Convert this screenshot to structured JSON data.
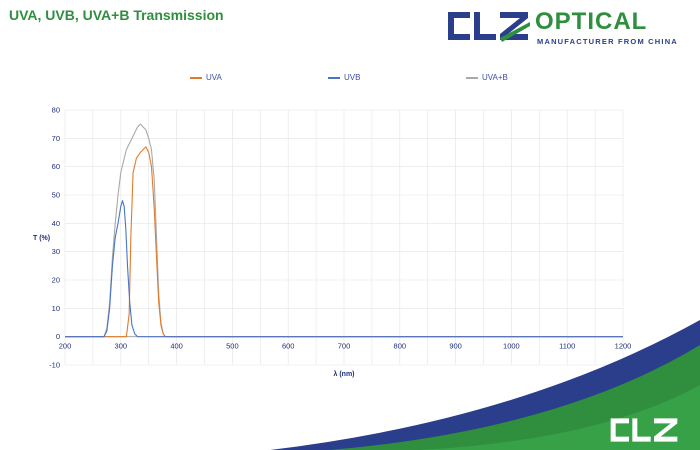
{
  "page": {
    "title": "UVA, UVB, UVA+B Transmission",
    "logo": {
      "brand_mark": "CLZ",
      "brand_name": "OPTICAL",
      "tagline": "MANUFACTURER FROM CHINA",
      "footer_mark": "CLZ"
    },
    "colors": {
      "title_green": "#2f8f3e",
      "brand_blue": "#2b3e8c",
      "uva": "#e07b2e",
      "uvb": "#4a74c9",
      "uvab": "#a9a9a9"
    }
  },
  "chart_data": {
    "type": "line",
    "title": "",
    "xlabel": "λ (nm)",
    "ylabel": "T (%)",
    "xlim": [
      200,
      1200
    ],
    "ylim": [
      -10,
      80
    ],
    "xticks": [
      200,
      300,
      400,
      500,
      600,
      700,
      800,
      900,
      1000,
      1100,
      1200
    ],
    "yticks": [
      -10,
      0,
      10,
      20,
      30,
      40,
      50,
      60,
      70,
      80
    ],
    "grid": true,
    "legend_position": "top",
    "series": [
      {
        "name": "UVA",
        "color": "#e07b2e",
        "x": [
          200,
          300,
          310,
          315,
          318,
          322,
          328,
          335,
          340,
          345,
          350,
          355,
          360,
          364,
          368,
          372,
          376,
          380,
          385,
          400,
          500,
          600,
          700,
          800,
          900,
          1000,
          1100,
          1200
        ],
        "y": [
          0,
          0,
          0,
          8,
          35,
          58,
          63,
          65,
          66,
          67,
          65,
          60,
          45,
          28,
          12,
          4,
          1,
          0,
          0,
          0,
          0,
          0,
          0,
          0,
          0,
          0,
          0,
          0
        ]
      },
      {
        "name": "UVB",
        "color": "#4a74c9",
        "x": [
          200,
          270,
          275,
          280,
          285,
          290,
          295,
          300,
          303,
          306,
          309,
          312,
          316,
          320,
          325,
          330,
          400,
          500,
          600,
          700,
          800,
          900,
          1000,
          1100,
          1200
        ],
        "y": [
          0,
          0,
          2,
          10,
          25,
          35,
          40,
          46,
          48,
          46,
          38,
          25,
          12,
          4,
          1,
          0,
          0,
          0,
          0,
          0,
          0,
          0,
          0,
          0,
          0
        ]
      },
      {
        "name": "UVA+B",
        "color": "#a9a9a9",
        "x": [
          200,
          270,
          275,
          280,
          285,
          290,
          295,
          300,
          305,
          310,
          315,
          320,
          325,
          330,
          335,
          340,
          345,
          350,
          355,
          360,
          364,
          368,
          372,
          376,
          380,
          385,
          400,
          500,
          600,
          700,
          800,
          900,
          1000,
          1100,
          1200
        ],
        "y": [
          0,
          0,
          3,
          12,
          28,
          40,
          50,
          58,
          62,
          66,
          68,
          70,
          72,
          74,
          75,
          74,
          73,
          70,
          66,
          55,
          35,
          15,
          5,
          1,
          0,
          0,
          0,
          0,
          0,
          0,
          0,
          0,
          0,
          0,
          0
        ]
      }
    ]
  }
}
